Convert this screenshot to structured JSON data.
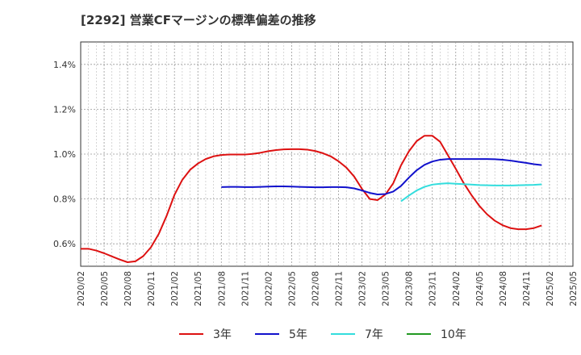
{
  "chart_data": {
    "type": "line",
    "title": "[2292]  営業CFマージンの標準偏差の推移",
    "xlabel": "",
    "ylabel": "",
    "ylim": [
      0.5,
      1.5
    ],
    "grid": true,
    "legend_position": "bottom",
    "x_ticks": [
      "2020/02",
      "2020/05",
      "2020/08",
      "2020/11",
      "2021/02",
      "2021/05",
      "2021/08",
      "2021/11",
      "2022/02",
      "2022/05",
      "2022/08",
      "2022/11",
      "2023/02",
      "2023/05",
      "2023/08",
      "2023/11",
      "2024/02",
      "2024/05",
      "2024/08",
      "2024/11",
      "2025/02",
      "2025/05"
    ],
    "y_ticks": [
      {
        "value": 0.6,
        "label": "0.6%"
      },
      {
        "value": 0.8,
        "label": "0.8%"
      },
      {
        "value": 1.0,
        "label": "1.0%"
      },
      {
        "value": 1.2,
        "label": "1.2%"
      },
      {
        "value": 1.4,
        "label": "1.4%"
      }
    ],
    "series": [
      {
        "name": "3年",
        "color": "#dd1111",
        "start": "2020/02",
        "values": [
          0.578,
          0.578,
          0.57,
          0.558,
          0.544,
          0.53,
          0.518,
          0.522,
          0.545,
          0.585,
          0.645,
          0.725,
          0.818,
          0.885,
          0.93,
          0.958,
          0.978,
          0.99,
          0.996,
          0.998,
          0.998,
          0.998,
          1.001,
          1.006,
          1.013,
          1.018,
          1.021,
          1.022,
          1.022,
          1.02,
          1.014,
          1.004,
          0.99,
          0.968,
          0.94,
          0.9,
          0.845,
          0.8,
          0.795,
          0.82,
          0.87,
          0.95,
          1.012,
          1.058,
          1.082,
          1.082,
          1.055,
          0.995,
          0.935,
          0.872,
          0.818,
          0.77,
          0.732,
          0.703,
          0.683,
          0.67,
          0.665,
          0.665,
          0.67,
          0.682
        ]
      },
      {
        "name": "5年",
        "color": "#1111cc",
        "start": "2021/08",
        "values": [
          0.853,
          0.854,
          0.854,
          0.853,
          0.853,
          0.854,
          0.855,
          0.856,
          0.856,
          0.855,
          0.854,
          0.853,
          0.852,
          0.852,
          0.853,
          0.853,
          0.852,
          0.847,
          0.838,
          0.827,
          0.82,
          0.822,
          0.833,
          0.858,
          0.895,
          0.928,
          0.952,
          0.967,
          0.975,
          0.978,
          0.978,
          0.978,
          0.978,
          0.978,
          0.978,
          0.977,
          0.975,
          0.971,
          0.966,
          0.961,
          0.955,
          0.951
        ]
      },
      {
        "name": "7年",
        "color": "#33dddd",
        "start": "2023/07",
        "values": [
          0.79,
          0.815,
          0.838,
          0.854,
          0.864,
          0.868,
          0.87,
          0.868,
          0.866,
          0.864,
          0.862,
          0.861,
          0.86,
          0.86,
          0.86,
          0.861,
          0.862,
          0.863,
          0.865
        ]
      },
      {
        "name": "10年",
        "color": "#229922",
        "start": "2025/02",
        "values": []
      }
    ]
  }
}
